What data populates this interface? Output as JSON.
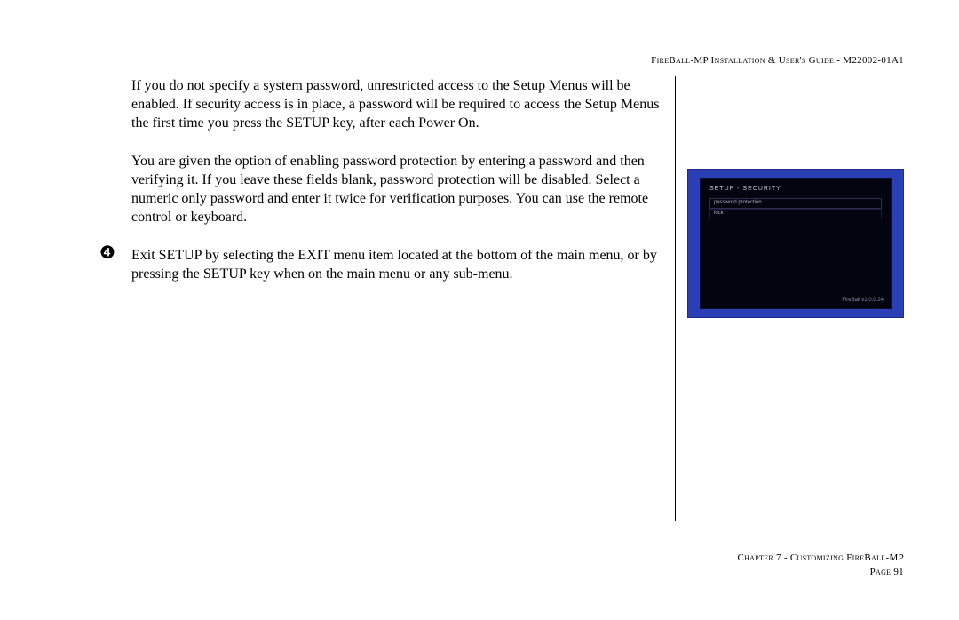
{
  "header": {
    "text": "FireBall-MP Installation & User's Guide - M22002-01A1"
  },
  "main": {
    "para1": "If you do not specify a system password, unrestricted access to the Setup Menus will be enabled. If security access is in place, a password will be required to access the Setup Menus the first time you press the SETUP key, after each Power On.",
    "para2": "You are given the option of enabling password protection by entering a password and then verifying it. If you leave these fields blank, password protection will be disabled. Select a numeric only password and enter it twice for verification purposes. You can use the remote control or keyboard.",
    "step4_marker": "❹",
    "step4_text": "Exit SETUP by selecting the EXIT menu item located at the bottom of the main menu, or by pressing the SETUP key when on the main menu or any sub-menu."
  },
  "screenshot": {
    "bg_color": "#2a3fb6",
    "osd_bg": "#02050f",
    "title": "SETUP - SECURITY",
    "row1_label": "password protection",
    "row2_label": "lock",
    "credit": "FireBall v1.0.0.24"
  },
  "footer": {
    "chapter": "Chapter 7 - Customizing FireBall-MP",
    "page": "Page 91"
  }
}
